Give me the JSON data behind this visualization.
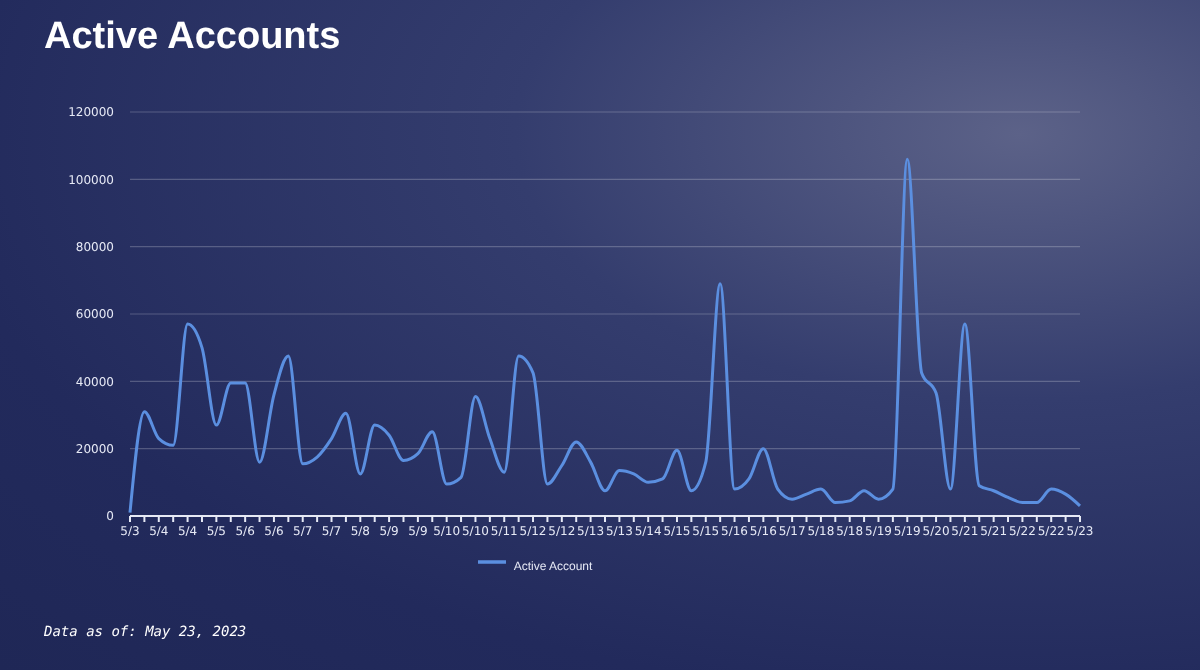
{
  "chart_data": {
    "type": "line",
    "title": "Active Accounts",
    "categories": [
      "5/3",
      null,
      "5/4",
      null,
      "5/4",
      null,
      "5/5",
      null,
      "5/6",
      null,
      "5/6",
      null,
      "5/7",
      null,
      "5/7",
      null,
      "5/8",
      null,
      "5/9",
      null,
      "5/9",
      null,
      "5/10",
      null,
      "5/10",
      null,
      "5/11",
      null,
      "5/12",
      null,
      "5/12",
      null,
      "5/13",
      null,
      "5/13",
      null,
      "5/14",
      null,
      "5/15",
      null,
      "5/15",
      null,
      "5/16",
      null,
      "5/16",
      null,
      "5/17",
      null,
      "5/18",
      null,
      "5/18",
      null,
      "5/19",
      null,
      "5/19",
      null,
      "5/20",
      null,
      "5/21",
      null,
      "5/21",
      null,
      "5/22",
      null,
      "5/22",
      null,
      "5/23"
    ],
    "series": [
      {
        "name": "Active Account",
        "color": "#5b8fe0",
        "values": [
          1000,
          31000,
          23000,
          21000,
          57000,
          50000,
          27000,
          39500,
          39500,
          16000,
          36000,
          47500,
          15500,
          17500,
          23000,
          30500,
          12500,
          27000,
          24000,
          16500,
          18500,
          25000,
          9500,
          11500,
          35500,
          23000,
          13000,
          47500,
          42500,
          9500,
          15000,
          22000,
          16000,
          7500,
          13500,
          12500,
          10000,
          11000,
          19500,
          7500,
          16000,
          69000,
          8000,
          11000,
          20000,
          8000,
          5000,
          6500,
          8000,
          4000,
          4500,
          7500,
          5000,
          8000,
          106000,
          42500,
          36500,
          8000,
          57000,
          9000,
          7500,
          5500,
          4000,
          4000,
          8000,
          6500,
          3000
        ]
      }
    ],
    "ylim": [
      0,
      120000
    ],
    "yticks": [
      0,
      20000,
      40000,
      60000,
      80000,
      100000,
      120000
    ],
    "grid": "y",
    "legend": "bottom",
    "marker": "none",
    "line_style": "solid",
    "annotations": [
      "Data as of: May 23, 2023"
    ]
  }
}
